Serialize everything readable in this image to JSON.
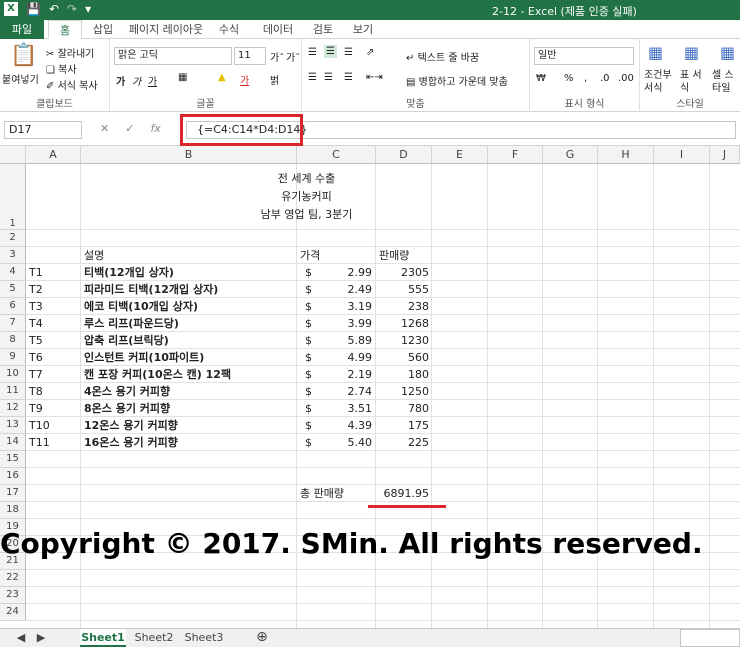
{
  "window": {
    "title": "2-12 -  Excel (제품 인증 실패)"
  },
  "tabs": [
    "파일",
    "홈",
    "삽입",
    "페이지 레이아웃",
    "수식",
    "데이터",
    "검토",
    "보기"
  ],
  "ribbon": {
    "clipboard": {
      "paste": "붙여넣기",
      "cut": "잘라내기",
      "copy": "복사",
      "format_painter": "서식 복사",
      "label": "클립보드"
    },
    "font": {
      "name": "맑은 고딕",
      "size": "11",
      "bold": "가",
      "italic": "가",
      "underline": "가",
      "label": "글꼴"
    },
    "align": {
      "wrap": "텍스트 줄 바꿈",
      "merge": "병합하고 가운데 맞춤",
      "label": "맞춤"
    },
    "number": {
      "format": "일반",
      "label": "표시 형식"
    },
    "styles": {
      "cond": "조건부 서식",
      "table": "표 서식",
      "cell": "셀 스타일",
      "label": "스타일"
    }
  },
  "formula_bar": {
    "namebox": "D17",
    "formula": "{=C4:C14*D4:D14}"
  },
  "columns": [
    "A",
    "B",
    "C",
    "D",
    "E",
    "F",
    "G",
    "H",
    "I",
    "J"
  ],
  "rows": [
    "1",
    "2",
    "3",
    "4",
    "5",
    "6",
    "7",
    "8",
    "9",
    "10",
    "11",
    "12",
    "13",
    "14",
    "15",
    "16",
    "17",
    "18",
    "19",
    "20",
    "21",
    "22",
    "23",
    "24"
  ],
  "sheet": {
    "title1": "전 세계 수출",
    "title2": "유기농커피",
    "title3": "남부 영업 팀, 3분기",
    "header_desc": "설명",
    "header_price": "가격",
    "header_qty": "판매량",
    "items": [
      {
        "id": "T1",
        "desc": "티백(12개입 상자)",
        "cur": "$",
        "price": "2.99",
        "qty": "2305"
      },
      {
        "id": "T2",
        "desc": "피라미드 티백(12개입 상자)",
        "cur": "$",
        "price": "2.49",
        "qty": "555"
      },
      {
        "id": "T3",
        "desc": "에코 티백(10개입 상자)",
        "cur": "$",
        "price": "3.19",
        "qty": "238"
      },
      {
        "id": "T4",
        "desc": "루스 리프(파운드당)",
        "cur": "$",
        "price": "3.99",
        "qty": "1268"
      },
      {
        "id": "T5",
        "desc": "압축 리프(브릭당)",
        "cur": "$",
        "price": "5.89",
        "qty": "1230"
      },
      {
        "id": "T6",
        "desc": "인스턴트 커피(10파이트)",
        "cur": "$",
        "price": "4.99",
        "qty": "560"
      },
      {
        "id": "T7",
        "desc": "캔 포장 커피(10온스 캔) 12팩",
        "cur": "$",
        "price": "2.19",
        "qty": "180"
      },
      {
        "id": "T8",
        "desc": "4온스 용기 커피향",
        "cur": "$",
        "price": "2.74",
        "qty": "1250"
      },
      {
        "id": "T9",
        "desc": "8온스 용기 커피향",
        "cur": "$",
        "price": "3.51",
        "qty": "780"
      },
      {
        "id": "T10",
        "desc": "12온스 용기 커피향",
        "cur": "$",
        "price": "4.39",
        "qty": "175"
      },
      {
        "id": "T11",
        "desc": "16온스 용기 커피향",
        "cur": "$",
        "price": "5.40",
        "qty": "225"
      }
    ],
    "total_label": "총 판매량",
    "total_value": "6891.95"
  },
  "copyright": "Copyright © 2017. SMin. All rights reserved.",
  "sheet_tabs": [
    "Sheet1",
    "Sheet2",
    "Sheet3"
  ],
  "colors": {
    "excel_green": "#217346",
    "highlight_red": "#d9252b"
  }
}
